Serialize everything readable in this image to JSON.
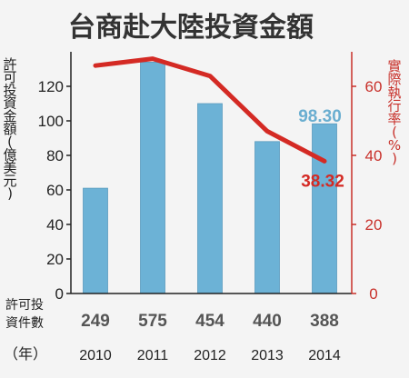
{
  "chart_data": {
    "type": "bar",
    "title": "台商赴大陸投資金額",
    "categories": [
      "2010",
      "2011",
      "2012",
      "2013",
      "2014"
    ],
    "series": [
      {
        "name": "許可投資金額(億美元)",
        "axis": "left",
        "type": "bar",
        "values": [
          61,
          134,
          110,
          88,
          98.3
        ]
      },
      {
        "name": "實際執行率(%)",
        "axis": "right",
        "type": "line",
        "values": [
          66,
          68,
          63,
          47,
          38.32
        ]
      }
    ],
    "bar_data_label": {
      "index": 4,
      "text": "98.30"
    },
    "line_data_label": {
      "index": 4,
      "text": "38.32"
    },
    "left_axis": {
      "label": "許可投資金額(億美元)",
      "ylim": [
        0,
        140
      ],
      "ticks": [
        "0",
        "20",
        "40",
        "60",
        "80",
        "100",
        "120"
      ],
      "tick_values": [
        0,
        20,
        40,
        60,
        80,
        100,
        120
      ]
    },
    "right_axis": {
      "label": "實際執行率(%)",
      "ylim": [
        0,
        70
      ],
      "ticks": [
        "0",
        "20",
        "40",
        "60"
      ],
      "tick_values": [
        0,
        20,
        40,
        60
      ]
    },
    "row_label": {
      "line1": "許可投",
      "line2": "資件數"
    },
    "counts": [
      "249",
      "575",
      "454",
      "440",
      "388"
    ],
    "year_unit": "（年）",
    "colors": {
      "bar": "#6cb2d6",
      "line": "#d42a24",
      "right_axis": "#c8302a",
      "background": "#f4f4f4"
    },
    "grid": false
  }
}
